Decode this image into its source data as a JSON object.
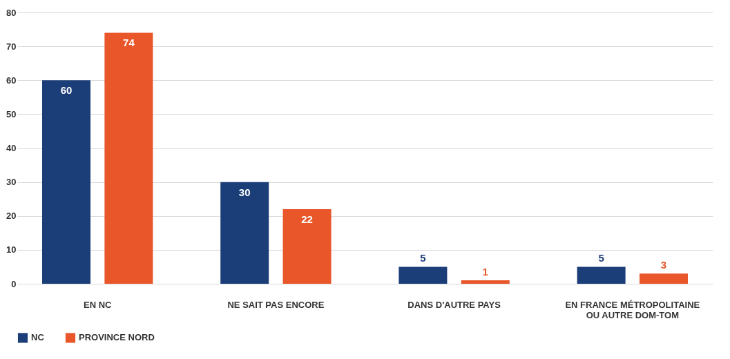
{
  "chart_data": {
    "type": "bar",
    "categories": [
      "EN NC",
      "NE SAIT PAS ENCORE",
      "DANS D'AUTRE PAYS",
      "EN FRANCE MÉTROPOLITAINE OU AUTRE DOM-TOM"
    ],
    "series": [
      {
        "name": "NC",
        "color": "#1b3d78",
        "values": [
          60,
          30,
          5,
          5
        ]
      },
      {
        "name": "PROVINCE NORD",
        "color": "#e8562a",
        "values": [
          74,
          22,
          1,
          3
        ]
      }
    ],
    "ylim": [
      0,
      80
    ],
    "yticks": [
      0,
      10,
      20,
      30,
      40,
      50,
      60,
      70,
      80
    ],
    "grid": "y",
    "legend": "bottom",
    "data_labels": true
  }
}
